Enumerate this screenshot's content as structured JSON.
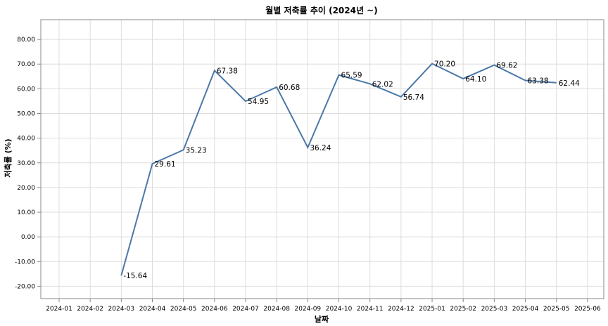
{
  "chart_data": {
    "type": "line",
    "title": "월별 저축률 추이 (2024년 ~)",
    "xlabel": "날짜",
    "ylabel": "저축률 (%)",
    "x_ticks": [
      "2024-01",
      "2024-02",
      "2024-03",
      "2024-04",
      "2024-05",
      "2024-06",
      "2024-07",
      "2024-08",
      "2024-09",
      "2024-10",
      "2024-11",
      "2024-12",
      "2025-01",
      "2025-02",
      "2025-03",
      "2025-04",
      "2025-05",
      "2025-06"
    ],
    "y_ticks": [
      "-20.00",
      "-10.00",
      "0.00",
      "10.00",
      "20.00",
      "30.00",
      "40.00",
      "50.00",
      "60.00",
      "70.00",
      "80.00"
    ],
    "ylim": [
      -25,
      88
    ],
    "grid": true,
    "line_color": "#4c78a8",
    "x": [
      "2024-03",
      "2024-04",
      "2024-05",
      "2024-06",
      "2024-07",
      "2024-08",
      "2024-09",
      "2024-10",
      "2024-11",
      "2024-12",
      "2025-01",
      "2025-02",
      "2025-03",
      "2025-04",
      "2025-05"
    ],
    "values": [
      -15.64,
      29.61,
      35.23,
      67.38,
      54.95,
      60.68,
      36.24,
      65.59,
      62.02,
      56.74,
      70.2,
      64.1,
      69.62,
      63.38,
      62.44
    ],
    "data_labels": [
      "-15.64",
      "29.61",
      "35.23",
      "67.38",
      "54.95",
      "60.68",
      "36.24",
      "65.59",
      "62.02",
      "56.74",
      "70.20",
      "64.10",
      "69.62",
      "63.38",
      "62.44"
    ]
  }
}
